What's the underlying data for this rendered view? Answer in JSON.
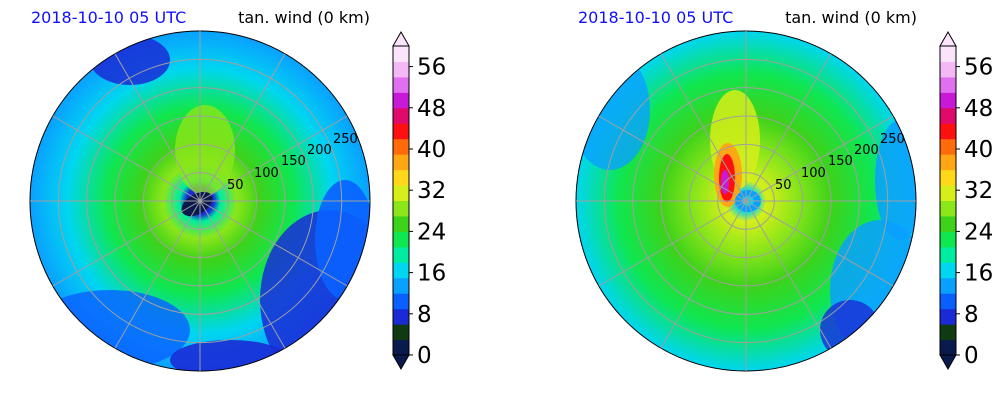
{
  "chart_data": [
    {
      "type": "heatmap",
      "projection": "polar",
      "title_left": "2018-10-10 05 UTC",
      "title_right": "tan. wind (0 km)",
      "radial_ticks": [
        "50",
        "100",
        "150",
        "200",
        "250"
      ],
      "radial_tick_values": [
        50,
        100,
        150,
        200,
        250
      ],
      "rlim": [
        0,
        300
      ],
      "grid": true,
      "colorbar": {
        "tick_labels": [
          "0",
          "8",
          "16",
          "24",
          "32",
          "40",
          "48",
          "56"
        ],
        "tick_values": [
          0,
          8,
          16,
          24,
          32,
          40,
          48,
          56
        ],
        "range": [
          0,
          60
        ],
        "extend": "both"
      }
    },
    {
      "type": "heatmap",
      "projection": "polar",
      "title_left": "2018-10-10 05 UTC",
      "title_right": "tan. wind (0 km)",
      "radial_ticks": [
        "50",
        "100",
        "150",
        "200",
        "250"
      ],
      "radial_tick_values": [
        50,
        100,
        150,
        200,
        250
      ],
      "rlim": [
        0,
        300
      ],
      "grid": true,
      "colorbar": {
        "tick_labels": [
          "0",
          "8",
          "16",
          "24",
          "32",
          "40",
          "48",
          "56"
        ],
        "tick_values": [
          0,
          8,
          16,
          24,
          32,
          40,
          48,
          56
        ],
        "range": [
          0,
          60
        ],
        "extend": "both"
      }
    }
  ],
  "colormap": [
    "#0a1a4c",
    "#0f3a14",
    "#1a2bd6",
    "#0a60ff",
    "#0aa0ff",
    "#00d6f0",
    "#00eca0",
    "#10e650",
    "#3ed21a",
    "#8be61a",
    "#d6ef1a",
    "#ffd81a",
    "#ffa614",
    "#ff6a0a",
    "#ff1010",
    "#e00a6a",
    "#c81ad6",
    "#e070f0",
    "#f4b8f6",
    "#fbe4fb"
  ]
}
